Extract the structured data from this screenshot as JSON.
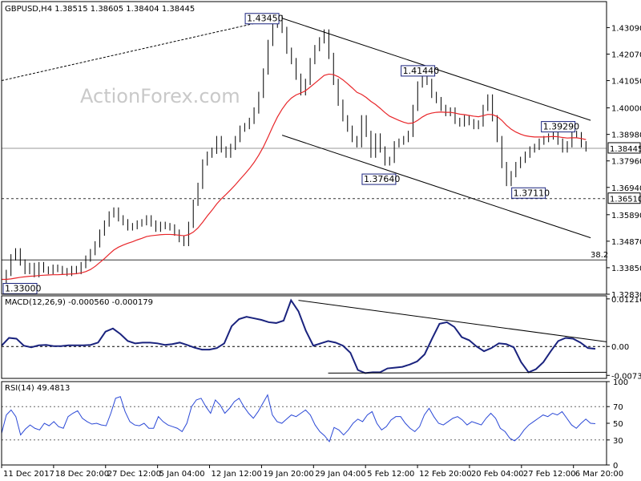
{
  "chart_data": [
    {
      "type": "line",
      "panel": "price",
      "title": "GBPUSD,H4  1.38515 1.38605 1.38404 1.38445",
      "watermark": "ActionForex.com",
      "ylim": [
        1.3283,
        1.4409
      ],
      "yticks": [
        "1.43090",
        "1.42070",
        "1.41050",
        "1.40000",
        "1.38980",
        "1.37960",
        "1.36940",
        "1.35890",
        "1.34870",
        "1.33850",
        "1.32830"
      ],
      "ytick_values": [
        1.4309,
        1.4207,
        1.4105,
        1.4,
        1.3898,
        1.3796,
        1.3694,
        1.3589,
        1.3487,
        1.3385,
        1.3283
      ],
      "last_price": "1.38445",
      "last_price_value": 1.38445,
      "support_level": "1.36510",
      "support_value": 1.3651,
      "fib_label": "38.2",
      "fib_value": 1.3415,
      "annotations": [
        {
          "label": "1.43450",
          "x": 60,
          "y": 1.4345
        },
        {
          "label": "1.41440",
          "x": 93,
          "y": 1.4144
        },
        {
          "label": "1.39290",
          "x": 123,
          "y": 1.3929
        },
        {
          "label": "1.37640",
          "x": 85,
          "y": 1.3764
        },
        {
          "label": "1.37110",
          "x": 117,
          "y": 1.3711
        },
        {
          "label": "1.33000",
          "x": 2,
          "y": 1.33
        }
      ],
      "x_tick_labels": [
        "11 Dec 2017",
        "18 Dec 20:00",
        "27 Dec 12:00",
        "5 Jan 04:00",
        "12 Jan 12:00",
        "19 Jan 20:00",
        "29 Jan 04:00",
        "5 Feb 12:00",
        "12 Feb 20:00",
        "20 Feb 04:00",
        "27 Feb 12:00",
        "6 Mar 20:00"
      ],
      "x_tick_positions": [
        0,
        11,
        22,
        33,
        44,
        55,
        66,
        77,
        88,
        99,
        110,
        121
      ],
      "series": [
        {
          "name": "GBPUSD",
          "color": "#000000",
          "values": [
            1.333,
            1.3365,
            1.3425,
            1.3448,
            1.3405,
            1.3372,
            1.3392,
            1.336,
            1.3395,
            1.3378,
            1.3372,
            1.3385,
            1.338,
            1.3372,
            1.3365,
            1.338,
            1.3372,
            1.3395,
            1.342,
            1.3445,
            1.3475,
            1.352,
            1.3555,
            1.359,
            1.3605,
            1.3575,
            1.356,
            1.354,
            1.3545,
            1.3555,
            1.356,
            1.3575,
            1.3555,
            1.3535,
            1.355,
            1.3545,
            1.354,
            1.352,
            1.3495,
            1.348,
            1.355,
            1.3635,
            1.37,
            1.379,
            1.382,
            1.3835,
            1.388,
            1.384,
            1.382,
            1.385,
            1.388,
            1.392,
            1.393,
            1.395,
            1.399,
            1.405,
            1.414,
            1.425,
            1.432,
            1.4345,
            1.43,
            1.422,
            1.418,
            1.412,
            1.406,
            1.41,
            1.418,
            1.423,
            1.426,
            1.429,
            1.42,
            1.41,
            1.402,
            1.396,
            1.392,
            1.388,
            1.386,
            1.396,
            1.39,
            1.382,
            1.389,
            1.384,
            1.379,
            1.38,
            1.386,
            1.387,
            1.388,
            1.39,
            1.4,
            1.409,
            1.4144,
            1.41,
            1.405,
            1.403,
            1.4,
            1.398,
            1.399,
            1.395,
            1.394,
            1.396,
            1.3945,
            1.393,
            1.394,
            1.4,
            1.404,
            1.396,
            1.388,
            1.378,
            1.3711,
            1.3745,
            1.378,
            1.38,
            1.382,
            1.384,
            1.385,
            1.387,
            1.388,
            1.389,
            1.39,
            1.387,
            1.384,
            1.386,
            1.39,
            1.3895,
            1.386,
            1.3844
          ]
        },
        {
          "name": "MA",
          "color": "#e8262a",
          "values": [
            1.334,
            1.334,
            1.3342,
            1.3345,
            1.3348,
            1.335,
            1.3352,
            1.3353,
            1.3355,
            1.3356,
            1.3357,
            1.3358,
            1.3358,
            1.3359,
            1.336,
            1.3361,
            1.3362,
            1.3365,
            1.337,
            1.3378,
            1.339,
            1.3405,
            1.342,
            1.3437,
            1.3453,
            1.3464,
            1.3472,
            1.3479,
            1.3485,
            1.3492,
            1.3498,
            1.3505,
            1.3508,
            1.351,
            1.3512,
            1.3513,
            1.3513,
            1.3512,
            1.351,
            1.3508,
            1.3512,
            1.3522,
            1.3538,
            1.356,
            1.3584,
            1.3606,
            1.363,
            1.365,
            1.3667,
            1.3685,
            1.3704,
            1.3725,
            1.3745,
            1.3766,
            1.379,
            1.3818,
            1.385,
            1.3888,
            1.3928,
            1.3965,
            1.3995,
            1.402,
            1.4038,
            1.405,
            1.4057,
            1.4066,
            1.408,
            1.4095,
            1.411,
            1.4125,
            1.413,
            1.4128,
            1.412,
            1.4108,
            1.4093,
            1.4077,
            1.406,
            1.4052,
            1.404,
            1.4025,
            1.4013,
            1.3998,
            1.3982,
            1.3968,
            1.396,
            1.3952,
            1.3945,
            1.394,
            1.3942,
            1.3952,
            1.3965,
            1.3975,
            1.398,
            1.3983,
            1.3984,
            1.3983,
            1.3983,
            1.398,
            1.3976,
            1.3974,
            1.3971,
            1.3968,
            1.3966,
            1.397,
            1.3975,
            1.3974,
            1.3967,
            1.3952,
            1.3933,
            1.3918,
            1.3907,
            1.3899,
            1.3893,
            1.389,
            1.3888,
            1.3888,
            1.3888,
            1.3889,
            1.389,
            1.3889,
            1.3886,
            1.3884,
            1.3885,
            1.3885,
            1.3882,
            1.3878
          ]
        },
        {
          "name": "SMA",
          "color": "#000000",
          "style": "dashed",
          "values": [
            1.4105,
            1.4345
          ]
        }
      ],
      "trendlines": [
        {
          "name": "upper-channel",
          "x": [
            60,
            126
          ],
          "y": [
            1.4345,
            1.3952
          ]
        },
        {
          "name": "lower-channel",
          "x": [
            60,
            126
          ],
          "y": [
            1.3895,
            1.35
          ]
        }
      ]
    },
    {
      "type": "line",
      "panel": "macd",
      "title": "MACD(12,26,9) -0.000560 -0.000179",
      "ylim": [
        -0.00815,
        0.01295
      ],
      "yticks": [
        "0.012164",
        "0.00",
        "-0.007384"
      ],
      "ytick_values": [
        0.012164,
        0.0,
        -0.007384
      ],
      "series": [
        {
          "name": "MACD",
          "color": "#1a237e",
          "values": [
            0.0002,
            0.0022,
            0.002,
            0.0002,
            -0.0002,
            0.0003,
            0.0004,
            0.0001,
            0.0001,
            0.0003,
            0.0003,
            0.0003,
            0.0004,
            0.001,
            0.0038,
            0.0046,
            0.0032,
            0.0014,
            0.0008,
            0.001,
            0.001,
            0.0008,
            0.0004,
            0.0006,
            0.001,
            0.0004,
            -0.0003,
            -0.0008,
            -0.0008,
            -0.0004,
            0.0008,
            0.0052,
            0.007,
            0.0076,
            0.0072,
            0.0068,
            0.0062,
            0.006,
            0.0066,
            0.0118,
            0.009,
            0.004,
            0.0002,
            0.0008,
            0.0014,
            0.001,
            0.0002,
            -0.0016,
            -0.006,
            -0.0068,
            -0.0066,
            -0.0066,
            -0.0056,
            -0.0054,
            -0.0052,
            -0.0046,
            -0.0038,
            -0.002,
            0.002,
            0.0058,
            0.0062,
            0.005,
            0.0024,
            0.0016,
            0.0,
            -0.0012,
            -0.0004,
            0.0008,
            0.0006,
            -0.0002,
            -0.004,
            -0.0066,
            -0.0058,
            -0.004,
            -0.0012,
            0.0014,
            0.0022,
            0.002,
            0.001,
            -0.0004,
            -0.0006
          ]
        }
      ]
    },
    {
      "type": "line",
      "panel": "rsi",
      "title": "RSI(14) 49.4813",
      "ylim": [
        0,
        100
      ],
      "yticks": [
        "100",
        "70",
        "50",
        "30",
        "0"
      ],
      "ytick_values": [
        100,
        70,
        50,
        30,
        0
      ],
      "series": [
        {
          "name": "RSI",
          "color": "#2a48d6",
          "values": [
            38,
            60,
            66,
            58,
            36,
            43,
            48,
            44,
            42,
            50,
            47,
            52,
            46,
            44,
            58,
            62,
            65,
            56,
            52,
            49,
            50,
            48,
            47,
            62,
            80,
            82,
            64,
            52,
            48,
            47,
            50,
            44,
            44,
            58,
            52,
            48,
            46,
            44,
            40,
            50,
            70,
            78,
            80,
            70,
            62,
            78,
            72,
            62,
            68,
            76,
            80,
            70,
            62,
            56,
            64,
            74,
            84,
            60,
            52,
            50,
            55,
            60,
            58,
            62,
            66,
            60,
            48,
            40,
            35,
            28,
            45,
            42,
            36,
            42,
            50,
            55,
            52,
            60,
            64,
            50,
            42,
            46,
            54,
            58,
            58,
            50,
            44,
            40,
            46,
            60,
            68,
            58,
            50,
            48,
            52,
            56,
            58,
            54,
            48,
            52,
            50,
            48,
            56,
            62,
            56,
            44,
            40,
            32,
            29,
            34,
            42,
            48,
            52,
            56,
            60,
            58,
            62,
            60,
            64,
            56,
            48,
            44,
            50,
            55,
            50,
            49.48
          ]
        }
      ]
    }
  ]
}
